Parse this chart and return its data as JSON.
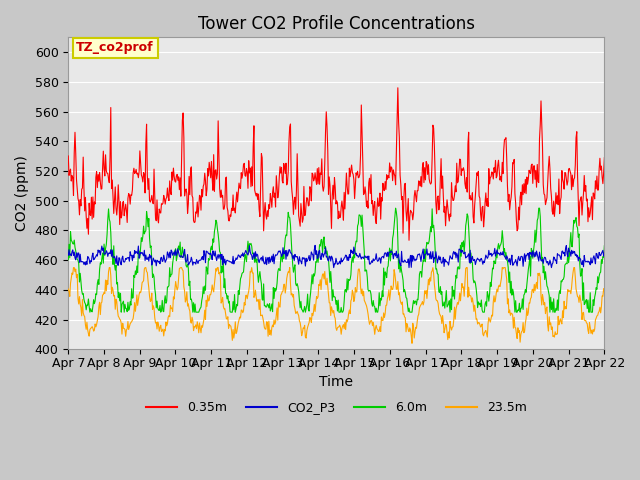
{
  "title": "Tower CO2 Profile Concentrations",
  "xlabel": "Time",
  "ylabel": "CO2 (ppm)",
  "ylim": [
    400,
    610
  ],
  "yticks": [
    400,
    420,
    440,
    460,
    480,
    500,
    520,
    540,
    560,
    580,
    600
  ],
  "date_labels": [
    "Apr 7",
    "Apr 8",
    "Apr 9",
    "Apr 10",
    "Apr 11",
    "Apr 12",
    "Apr 13",
    "Apr 14",
    "Apr 15",
    "Apr 16",
    "Apr 17",
    "Apr 18",
    "Apr 19",
    "Apr 20",
    "Apr 21",
    "Apr 22"
  ],
  "legend_labels": [
    "0.35m",
    "CO2_P3",
    "6.0m",
    "23.5m"
  ],
  "line_colors": [
    "#ff0000",
    "#0000cd",
    "#00cc00",
    "#ffa500"
  ],
  "annotation_text": "TZ_co2prof",
  "annotation_bg": "#ffffcc",
  "annotation_border": "#cccc00",
  "fig_bg": "#c8c8c8",
  "plot_bg": "#e8e8e8",
  "grid_color": "#ffffff",
  "title_fontsize": 12,
  "axis_fontsize": 10,
  "tick_fontsize": 9
}
